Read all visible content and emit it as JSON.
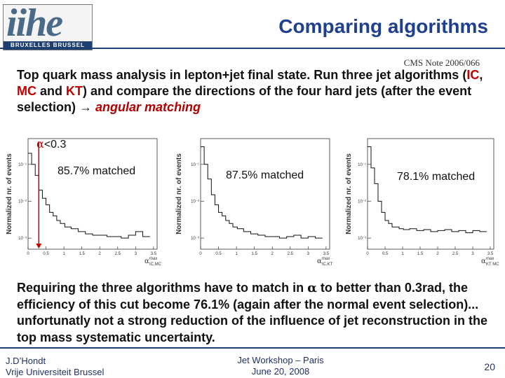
{
  "logo": {
    "word": "iihe",
    "band": "BRUXELLES BRUSSEL"
  },
  "title": "Comparing algorithms",
  "note": "CMS Note 2006/066",
  "intro": {
    "part1": "Top quark mass analysis in lepton+jet final state. Run three jet algorithms (",
    "alg1": "IC",
    "sep1": ", ",
    "alg2": "MC",
    "sep2": " and ",
    "alg3": "KT",
    "part2": ") and compare the directions of the four hard jets (after the event selection) → ",
    "matching": "angular matching"
  },
  "cut_label": {
    "symbol": "α",
    "text": "<0.3"
  },
  "chart_data": [
    {
      "type": "histogram",
      "ylabel": "Normalized nr. of events",
      "xlabel_main": "α",
      "xlabel_sup": "max",
      "xlabel_sub": "IC,MC",
      "x_ticks": [
        "0",
        "0.5",
        "1",
        "1.5",
        "2",
        "2.5",
        "3",
        "3.5"
      ],
      "y_ticks": [
        "10⁻¹",
        "10⁻²",
        "10⁻³"
      ],
      "annotation": "85.7% matched",
      "x": [
        0.05,
        0.15,
        0.25,
        0.35,
        0.45,
        0.55,
        0.65,
        0.75,
        0.85,
        0.95,
        1.1,
        1.3,
        1.5,
        1.7,
        1.9,
        2.1,
        2.3,
        2.5,
        2.7,
        2.9,
        3.1,
        3.3
      ],
      "values": [
        0.2,
        0.1,
        0.05,
        0.02,
        0.012,
        0.008,
        0.005,
        0.004,
        0.003,
        0.0025,
        0.002,
        0.0018,
        0.0015,
        0.0013,
        0.0012,
        0.0012,
        0.0011,
        0.0011,
        0.001,
        0.0012,
        0.0015,
        0.0011
      ]
    },
    {
      "type": "histogram",
      "ylabel": "Normalized nr. of events",
      "xlabel_main": "α",
      "xlabel_sup": "max",
      "xlabel_sub": "IC,KT",
      "x_ticks": [
        "0",
        "0.5",
        "1",
        "1.5",
        "2",
        "2.5",
        "3",
        "3.5"
      ],
      "y_ticks": [
        "10⁻¹",
        "10⁻²",
        "10⁻³"
      ],
      "annotation": "87.5% matched",
      "x": [
        0.05,
        0.15,
        0.25,
        0.35,
        0.45,
        0.55,
        0.65,
        0.75,
        0.85,
        0.95,
        1.1,
        1.3,
        1.5,
        1.7,
        1.9,
        2.1,
        2.3,
        2.5,
        2.7,
        2.9,
        3.1,
        3.3
      ],
      "values": [
        0.3,
        0.1,
        0.04,
        0.015,
        0.008,
        0.005,
        0.004,
        0.003,
        0.0025,
        0.002,
        0.0018,
        0.0015,
        0.0013,
        0.0012,
        0.0011,
        0.0011,
        0.001,
        0.0011,
        0.0012,
        0.001,
        0.0011,
        0.001
      ]
    },
    {
      "type": "histogram",
      "ylabel": "Normalized nr. of events",
      "xlabel_main": "α",
      "xlabel_sup": "max",
      "xlabel_sub": "KT MC",
      "x_ticks": [
        "0",
        "0.5",
        "1",
        "1.5",
        "2",
        "2.5",
        "3",
        "3.5"
      ],
      "y_ticks": [
        "10⁻¹",
        "10⁻²",
        "10⁻³"
      ],
      "annotation": "78.1% matched",
      "x": [
        0.05,
        0.15,
        0.25,
        0.35,
        0.45,
        0.55,
        0.65,
        0.75,
        0.85,
        0.95,
        1.1,
        1.3,
        1.5,
        1.7,
        1.9,
        2.1,
        2.3,
        2.5,
        2.7,
        2.9,
        3.1,
        3.3
      ],
      "values": [
        0.3,
        0.08,
        0.03,
        0.01,
        0.005,
        0.003,
        0.0025,
        0.002,
        0.002,
        0.0018,
        0.0017,
        0.0018,
        0.0016,
        0.0017,
        0.0015,
        0.0016,
        0.0017,
        0.0015,
        0.0016,
        0.0014,
        0.0016,
        0.0015
      ]
    }
  ],
  "conclusion": {
    "part1": "Requiring the three algorithms have to match in ",
    "symbol": "α",
    "part2": " to better than 0.3rad, the efficiency of this cut become 76.1% (again after the normal event selection)... unfortunatly not a strong reduction of the influence of jet reconstruction in the top mass systematic uncertainty."
  },
  "footer": {
    "author": "J.D’Hondt",
    "institution": "Vrije Universiteit Brussel",
    "event": "Jet Workshop – Paris",
    "date": "June 20, 2008",
    "page": "20"
  }
}
